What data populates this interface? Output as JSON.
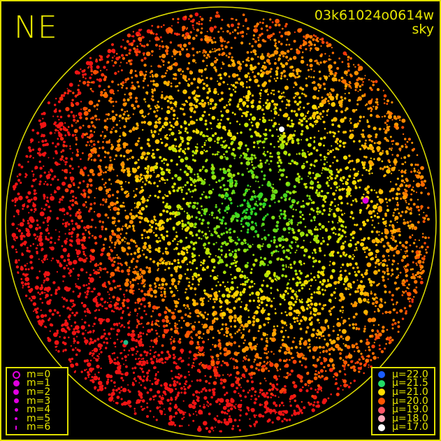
{
  "direction_label": "NE",
  "title": {
    "id": "03k61024o0614w",
    "subtitle": "sky"
  },
  "colors": {
    "frame": "#e0e000",
    "background": "#000000",
    "magnitude_marker": "#e000e0"
  },
  "magnitude_legend": [
    {
      "label": "m=0",
      "hollow": true
    },
    {
      "label": "m=1"
    },
    {
      "label": "m=2"
    },
    {
      "label": "m=3"
    },
    {
      "label": "m=4"
    },
    {
      "label": "m=5"
    },
    {
      "label": "m=6"
    }
  ],
  "brightness_legend": [
    {
      "label": "μ=22.0",
      "color": "#1a5cff"
    },
    {
      "label": "μ=21.5",
      "color": "#22dd66"
    },
    {
      "label": "μ=21.0",
      "color": "#ffdd00"
    },
    {
      "label": "μ=20.0",
      "color": "#ff5500"
    },
    {
      "label": "μ=19.0",
      "color": "#ff5566"
    },
    {
      "label": "μ=18.0",
      "color": "#ffaabb"
    },
    {
      "label": "μ=17.0",
      "color": "#ffffff"
    }
  ]
}
